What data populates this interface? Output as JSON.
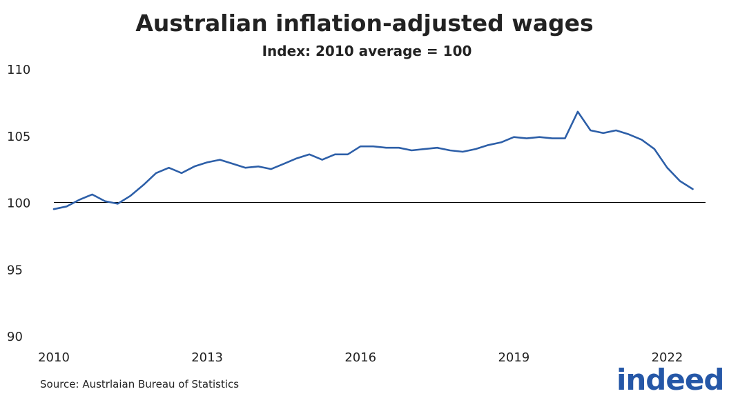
{
  "title": "Australian inflation-adjusted wages",
  "subtitle": "Index: 2010 average = 100",
  "source": "Source: Austrlaian Bureau of Statistics",
  "logo_text": "indeed",
  "colors": {
    "line": "#2d5fa8",
    "baseline": "#000000",
    "text": "#222222",
    "logo": "#2557a7"
  },
  "chart_data": {
    "type": "line",
    "title": "Australian inflation-adjusted wages",
    "subtitle": "Index: 2010 average = 100",
    "xlabel": "",
    "ylabel": "",
    "ylim": [
      90,
      110
    ],
    "yticks": [
      90,
      95,
      100,
      105,
      110
    ],
    "xticks": [
      2010,
      2013,
      2016,
      2019,
      2022
    ],
    "xlim": [
      2010,
      2022.75
    ],
    "reference_line": 100,
    "grid": false,
    "legend": "none",
    "series": [
      {
        "color": "#2d5fa8",
        "x": [
          2010.0,
          2010.25,
          2010.5,
          2010.75,
          2011.0,
          2011.25,
          2011.5,
          2011.75,
          2012.0,
          2012.25,
          2012.5,
          2012.75,
          2013.0,
          2013.25,
          2013.5,
          2013.75,
          2014.0,
          2014.25,
          2014.5,
          2014.75,
          2015.0,
          2015.25,
          2015.5,
          2015.75,
          2016.0,
          2016.25,
          2016.5,
          2016.75,
          2017.0,
          2017.25,
          2017.5,
          2017.75,
          2018.0,
          2018.25,
          2018.5,
          2018.75,
          2019.0,
          2019.25,
          2019.5,
          2019.75,
          2020.0,
          2020.25,
          2020.5,
          2020.75,
          2021.0,
          2021.25,
          2021.5,
          2021.75,
          2022.0,
          2022.25,
          2022.5
        ],
        "values": [
          99.5,
          99.7,
          100.2,
          100.6,
          100.1,
          99.9,
          100.5,
          101.3,
          102.2,
          102.6,
          102.2,
          102.7,
          103.0,
          103.2,
          102.9,
          102.6,
          102.7,
          102.5,
          102.9,
          103.3,
          103.6,
          103.2,
          103.6,
          103.6,
          104.2,
          104.2,
          104.1,
          104.1,
          103.9,
          104.0,
          104.1,
          103.9,
          103.8,
          104.0,
          104.3,
          104.5,
          104.9,
          104.8,
          104.9,
          104.8,
          104.8,
          106.8,
          105.4,
          105.2,
          105.4,
          105.1,
          104.7,
          104.0,
          102.6,
          101.6,
          101.0
        ]
      }
    ]
  }
}
